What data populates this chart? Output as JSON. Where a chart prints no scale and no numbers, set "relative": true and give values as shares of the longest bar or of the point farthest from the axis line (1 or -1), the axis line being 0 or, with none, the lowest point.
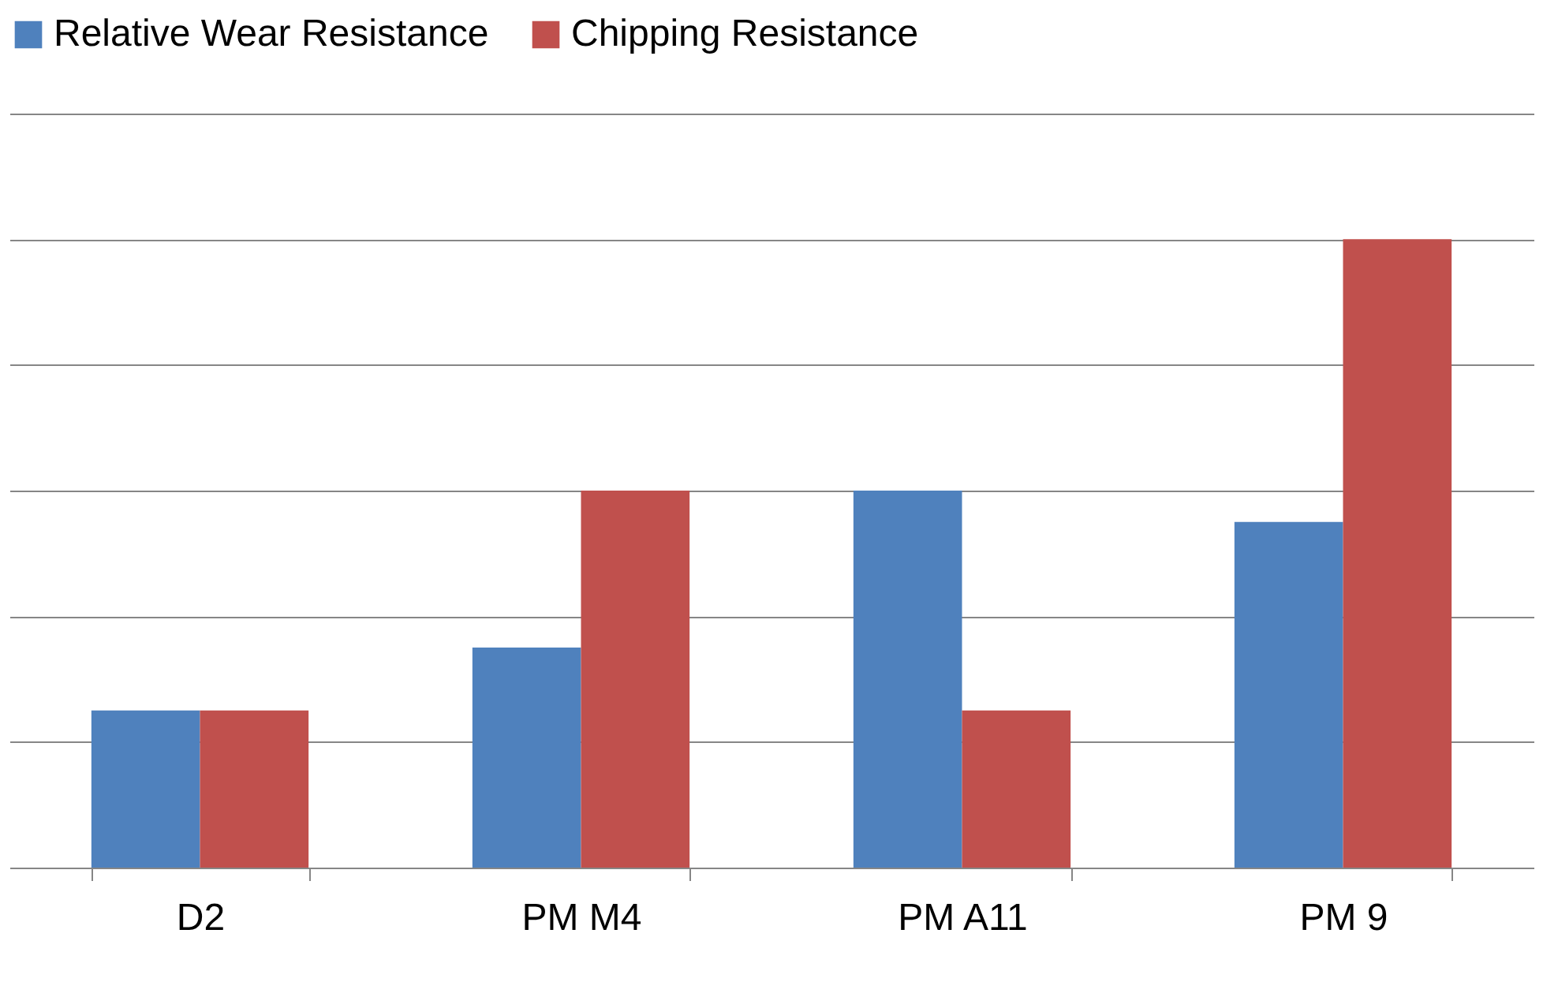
{
  "chart_data": {
    "type": "bar",
    "relative": true,
    "categories": [
      "D2",
      "PM M4",
      "PM A11",
      "PM 9"
    ],
    "series": [
      {
        "name": "Relative Wear Resistance",
        "color": "#4f81bd",
        "values": [
          0.25,
          0.35,
          0.6,
          0.55
        ]
      },
      {
        "name": "Chipping Resistance",
        "color": "#c0504d",
        "values": [
          0.25,
          0.6,
          0.25,
          1
        ]
      }
    ],
    "grid": "y",
    "legend": "top"
  }
}
